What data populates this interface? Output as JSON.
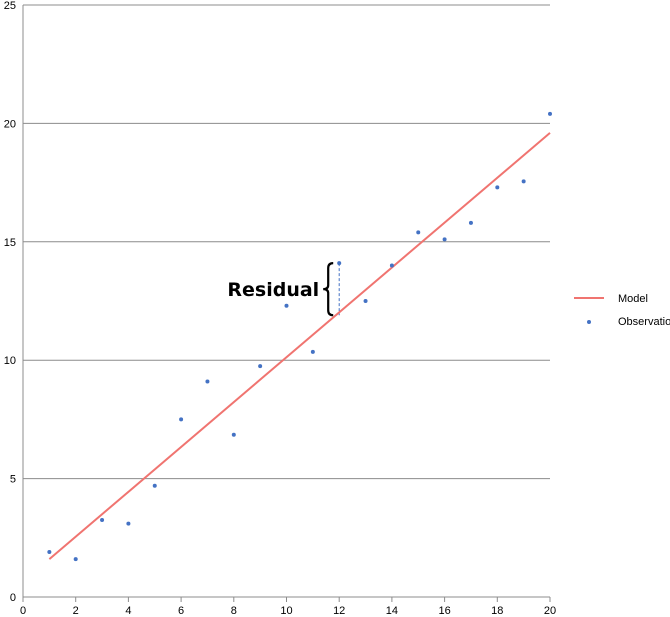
{
  "chart_data": {
    "type": "scatter",
    "title": "",
    "xlabel": "",
    "ylabel": "",
    "xlim": [
      0,
      20
    ],
    "ylim": [
      0,
      25
    ],
    "x_ticks": [
      "0",
      "2",
      "4",
      "6",
      "8",
      "10",
      "12",
      "14",
      "16",
      "18",
      "20"
    ],
    "y_ticks": [
      "0",
      "5",
      "10",
      "15",
      "20",
      "25"
    ],
    "grid": "horizontal",
    "legend_position": "right",
    "series": [
      {
        "name": "Model",
        "kind": "line",
        "color": "#f07470",
        "x": [
          1,
          20
        ],
        "y": [
          1.6,
          19.6
        ]
      },
      {
        "name": "Observations",
        "kind": "scatter",
        "color": "#4472c4",
        "x": [
          1,
          2,
          3,
          4,
          5,
          6,
          7,
          8,
          9,
          10,
          11,
          12,
          13,
          14,
          15,
          16,
          17,
          18,
          19,
          20
        ],
        "y": [
          1.9,
          1.6,
          3.25,
          3.1,
          4.7,
          7.5,
          9.1,
          6.85,
          9.75,
          12.3,
          10.35,
          14.1,
          12.5,
          14.0,
          15.4,
          15.1,
          15.8,
          17.3,
          17.55,
          20.4
        ]
      }
    ],
    "annotation": {
      "text": "Residual",
      "x": 12,
      "y_from": 11.9,
      "y_to": 14.1
    }
  }
}
